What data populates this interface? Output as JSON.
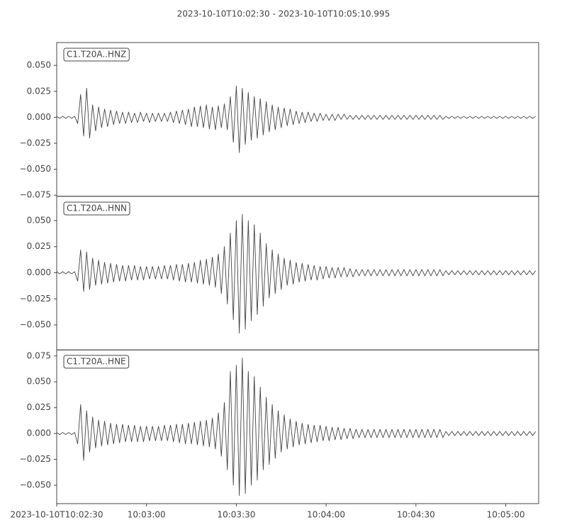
{
  "chart_data": [
    {
      "type": "line",
      "title": "2023-10-10T10:02:30  -  2023-10-10T10:05:10.995",
      "xlim": [
        0,
        160.995
      ],
      "ylim": [
        -0.076,
        0.072
      ],
      "yticks": [
        {
          "value": -0.075,
          "label": "−0.075"
        },
        {
          "value": -0.05,
          "label": "−0.050"
        },
        {
          "value": -0.025,
          "label": "−0.025"
        },
        {
          "value": 0,
          "label": "0.000"
        },
        {
          "value": 0.025,
          "label": "0.025"
        },
        {
          "value": 0.05,
          "label": "0.050"
        }
      ],
      "x": [
        0,
        1,
        2,
        3,
        4,
        5,
        6,
        7,
        8,
        9,
        10,
        11,
        12,
        13,
        14,
        15,
        16,
        17,
        18,
        19,
        20,
        21,
        22,
        23,
        24,
        25,
        26,
        27,
        28,
        29,
        30,
        31,
        32,
        33,
        34,
        35,
        36,
        37,
        38,
        39,
        40,
        41,
        42,
        43,
        44,
        45,
        46,
        47,
        48,
        49,
        50,
        51,
        52,
        53,
        54,
        55,
        56,
        57,
        58,
        59,
        60,
        61,
        62,
        63,
        64,
        65,
        66,
        67,
        68,
        69,
        70,
        71,
        72,
        73,
        74,
        75,
        76,
        77,
        78,
        79,
        80,
        81,
        82,
        83,
        84,
        85,
        86,
        87,
        88,
        89,
        90,
        91,
        92,
        93,
        94,
        95,
        96,
        97,
        98,
        99,
        100,
        101,
        102,
        103,
        104,
        105,
        106,
        107,
        108,
        109,
        110,
        111,
        112,
        113,
        114,
        115,
        116,
        117,
        118,
        119,
        120,
        121,
        122,
        123,
        124,
        125,
        126,
        127,
        128,
        129,
        130,
        131,
        132,
        133,
        134,
        135,
        136,
        137,
        138,
        139,
        140,
        141,
        142,
        143,
        144,
        145,
        146,
        147,
        148,
        149,
        150,
        151,
        152,
        153,
        154,
        155,
        156,
        157,
        158,
        159,
        160
      ],
      "series": [
        {
          "name": "C1.T20A..HNZ",
          "color": "#444444",
          "values": [
            0.001,
            -0.001,
            0.001,
            -0.001,
            0.001,
            -0.001,
            0.001,
            -0.006,
            0.022,
            -0.018,
            0.028,
            -0.02,
            0.012,
            -0.013,
            0.01,
            -0.01,
            0.008,
            -0.009,
            0.007,
            -0.007,
            0.006,
            -0.006,
            0.005,
            -0.006,
            0.005,
            -0.005,
            0.004,
            -0.005,
            0.005,
            -0.004,
            0.004,
            -0.005,
            0.004,
            -0.004,
            0.004,
            -0.004,
            0.004,
            -0.004,
            0.005,
            -0.005,
            0.006,
            -0.006,
            0.007,
            -0.007,
            0.008,
            -0.009,
            0.01,
            -0.009,
            0.011,
            -0.01,
            0.012,
            -0.011,
            0.01,
            -0.012,
            0.011,
            -0.01,
            0.013,
            -0.012,
            0.02,
            -0.024,
            0.03,
            -0.034,
            0.028,
            -0.026,
            0.024,
            -0.022,
            0.02,
            -0.02,
            0.018,
            -0.017,
            0.015,
            -0.014,
            0.012,
            -0.012,
            0.01,
            -0.01,
            0.009,
            -0.008,
            0.008,
            -0.007,
            0.006,
            -0.006,
            0.005,
            -0.005,
            0.005,
            -0.004,
            0.004,
            -0.004,
            0.004,
            -0.003,
            0.003,
            -0.003,
            0.003,
            -0.003,
            0.003,
            -0.002,
            0.003,
            -0.002,
            0.002,
            -0.002,
            0.002,
            -0.002,
            0.002,
            -0.002,
            0.002,
            -0.002,
            0.002,
            -0.002,
            0.002,
            -0.002,
            0.002,
            -0.002,
            0.002,
            -0.002,
            0.002,
            -0.002,
            0.002,
            -0.002,
            0.002,
            -0.002,
            0.002,
            -0.002,
            0.002,
            -0.002,
            0.002,
            -0.002,
            0.002,
            -0.002,
            0.002,
            -0.002,
            0.001,
            -0.001,
            0.001,
            -0.001,
            0.001,
            -0.001,
            0.001,
            -0.001,
            0.001,
            -0.001,
            0.001,
            -0.001,
            0.001,
            -0.001,
            0.001,
            -0.001,
            0.001,
            -0.001,
            0.001,
            -0.001,
            0.001,
            -0.001,
            0.001,
            -0.001,
            0.001,
            -0.001,
            0.001,
            -0.001,
            0.001,
            -0.001,
            0.001
          ]
        }
      ]
    },
    {
      "type": "line",
      "xlim": [
        0,
        160.995
      ],
      "ylim": [
        -0.074,
        0.0733
      ],
      "yticks": [
        {
          "value": -0.05,
          "label": "−0.050"
        },
        {
          "value": -0.025,
          "label": "−0.025"
        },
        {
          "value": 0,
          "label": "0.000"
        },
        {
          "value": 0.025,
          "label": "0.025"
        },
        {
          "value": 0.05,
          "label": "0.050"
        }
      ],
      "x": [
        0,
        1,
        2,
        3,
        4,
        5,
        6,
        7,
        8,
        9,
        10,
        11,
        12,
        13,
        14,
        15,
        16,
        17,
        18,
        19,
        20,
        21,
        22,
        23,
        24,
        25,
        26,
        27,
        28,
        29,
        30,
        31,
        32,
        33,
        34,
        35,
        36,
        37,
        38,
        39,
        40,
        41,
        42,
        43,
        44,
        45,
        46,
        47,
        48,
        49,
        50,
        51,
        52,
        53,
        54,
        55,
        56,
        57,
        58,
        59,
        60,
        61,
        62,
        63,
        64,
        65,
        66,
        67,
        68,
        69,
        70,
        71,
        72,
        73,
        74,
        75,
        76,
        77,
        78,
        79,
        80,
        81,
        82,
        83,
        84,
        85,
        86,
        87,
        88,
        89,
        90,
        91,
        92,
        93,
        94,
        95,
        96,
        97,
        98,
        99,
        100,
        101,
        102,
        103,
        104,
        105,
        106,
        107,
        108,
        109,
        110,
        111,
        112,
        113,
        114,
        115,
        116,
        117,
        118,
        119,
        120,
        121,
        122,
        123,
        124,
        125,
        126,
        127,
        128,
        129,
        130,
        131,
        132,
        133,
        134,
        135,
        136,
        137,
        138,
        139,
        140,
        141,
        142,
        143,
        144,
        145,
        146,
        147,
        148,
        149,
        150,
        151,
        152,
        153,
        154,
        155,
        156,
        157,
        158,
        159,
        160
      ],
      "series": [
        {
          "name": "C1.T20A..HNN",
          "color": "#444444",
          "values": [
            0.001,
            -0.001,
            0.001,
            -0.001,
            0.001,
            -0.001,
            0.001,
            -0.008,
            0.022,
            -0.018,
            0.02,
            -0.016,
            0.014,
            -0.012,
            0.012,
            -0.011,
            0.01,
            -0.01,
            0.009,
            -0.009,
            0.008,
            -0.008,
            0.007,
            -0.008,
            0.007,
            -0.007,
            0.007,
            -0.007,
            0.006,
            -0.007,
            0.006,
            -0.006,
            0.006,
            -0.006,
            0.006,
            -0.006,
            0.007,
            -0.006,
            0.007,
            -0.007,
            0.008,
            -0.008,
            0.008,
            -0.009,
            0.009,
            -0.009,
            0.01,
            -0.01,
            0.012,
            -0.011,
            0.013,
            -0.012,
            0.015,
            -0.014,
            0.018,
            -0.02,
            0.025,
            -0.03,
            0.038,
            -0.045,
            0.05,
            -0.058,
            0.056,
            -0.054,
            0.05,
            -0.046,
            0.046,
            -0.04,
            0.038,
            -0.032,
            0.028,
            -0.024,
            0.022,
            -0.02,
            0.018,
            -0.016,
            0.014,
            -0.012,
            0.012,
            -0.011,
            0.01,
            -0.009,
            0.009,
            -0.008,
            0.008,
            -0.007,
            0.007,
            -0.007,
            0.006,
            -0.006,
            0.006,
            -0.005,
            0.005,
            -0.005,
            0.005,
            -0.004,
            0.005,
            -0.004,
            0.004,
            -0.004,
            0.003,
            -0.003,
            0.003,
            -0.003,
            0.003,
            -0.003,
            0.003,
            -0.003,
            0.003,
            -0.003,
            0.003,
            -0.003,
            0.003,
            -0.003,
            0.003,
            -0.003,
            0.003,
            -0.003,
            0.003,
            -0.003,
            0.003,
            -0.003,
            0.003,
            -0.003,
            0.003,
            -0.003,
            0.003,
            -0.003,
            0.003,
            -0.003,
            0.002,
            -0.002,
            0.002,
            -0.002,
            0.002,
            -0.002,
            0.002,
            -0.002,
            0.002,
            -0.002,
            0.002,
            -0.002,
            0.002,
            -0.002,
            0.002,
            -0.002,
            0.002,
            -0.002,
            0.002,
            -0.002,
            0.002,
            -0.002,
            0.002,
            -0.002,
            0.002,
            -0.002,
            0.002,
            -0.002,
            0.002,
            -0.002,
            0.002
          ]
        }
      ]
    },
    {
      "type": "line",
      "xlim": [
        0,
        160.995
      ],
      "ylim": [
        -0.0678,
        0.0808
      ],
      "xticks": [
        {
          "value": 0,
          "label": "2023-10-10T10:02:30"
        },
        {
          "value": 30,
          "label": "10:03:00"
        },
        {
          "value": 60,
          "label": "10:03:30"
        },
        {
          "value": 90,
          "label": "10:04:00"
        },
        {
          "value": 120,
          "label": "10:04:30"
        },
        {
          "value": 150,
          "label": "10:05:00"
        }
      ],
      "yticks": [
        {
          "value": -0.05,
          "label": "−0.050"
        },
        {
          "value": -0.025,
          "label": "−0.025"
        },
        {
          "value": 0,
          "label": "0.000"
        },
        {
          "value": 0.025,
          "label": "0.025"
        },
        {
          "value": 0.05,
          "label": "0.050"
        },
        {
          "value": 0.075,
          "label": "0.075"
        }
      ],
      "x": [
        0,
        1,
        2,
        3,
        4,
        5,
        6,
        7,
        8,
        9,
        10,
        11,
        12,
        13,
        14,
        15,
        16,
        17,
        18,
        19,
        20,
        21,
        22,
        23,
        24,
        25,
        26,
        27,
        28,
        29,
        30,
        31,
        32,
        33,
        34,
        35,
        36,
        37,
        38,
        39,
        40,
        41,
        42,
        43,
        44,
        45,
        46,
        47,
        48,
        49,
        50,
        51,
        52,
        53,
        54,
        55,
        56,
        57,
        58,
        59,
        60,
        61,
        62,
        63,
        64,
        65,
        66,
        67,
        68,
        69,
        70,
        71,
        72,
        73,
        74,
        75,
        76,
        77,
        78,
        79,
        80,
        81,
        82,
        83,
        84,
        85,
        86,
        87,
        88,
        89,
        90,
        91,
        92,
        93,
        94,
        95,
        96,
        97,
        98,
        99,
        100,
        101,
        102,
        103,
        104,
        105,
        106,
        107,
        108,
        109,
        110,
        111,
        112,
        113,
        114,
        115,
        116,
        117,
        118,
        119,
        120,
        121,
        122,
        123,
        124,
        125,
        126,
        127,
        128,
        129,
        130,
        131,
        132,
        133,
        134,
        135,
        136,
        137,
        138,
        139,
        140,
        141,
        142,
        143,
        144,
        145,
        146,
        147,
        148,
        149,
        150,
        151,
        152,
        153,
        154,
        155,
        156,
        157,
        158,
        159,
        160
      ],
      "series": [
        {
          "name": "C1.T20A..HNE",
          "color": "#444444",
          "values": [
            0.001,
            -0.001,
            0.001,
            -0.001,
            0.001,
            -0.001,
            0.001,
            -0.01,
            0.028,
            -0.026,
            0.022,
            -0.018,
            0.016,
            -0.014,
            0.013,
            -0.012,
            0.012,
            -0.011,
            0.01,
            -0.01,
            0.009,
            -0.009,
            0.009,
            -0.008,
            0.008,
            -0.008,
            0.008,
            -0.008,
            0.007,
            -0.008,
            0.007,
            -0.007,
            0.007,
            -0.007,
            0.007,
            -0.007,
            0.008,
            -0.007,
            0.008,
            -0.008,
            0.009,
            -0.009,
            0.009,
            -0.01,
            0.01,
            -0.01,
            0.011,
            -0.011,
            0.012,
            -0.012,
            0.013,
            -0.013,
            0.015,
            -0.015,
            0.02,
            -0.022,
            0.03,
            -0.035,
            0.06,
            -0.05,
            0.066,
            -0.06,
            0.073,
            -0.058,
            0.06,
            -0.05,
            0.055,
            -0.045,
            0.045,
            -0.035,
            0.035,
            -0.03,
            0.028,
            -0.024,
            0.022,
            -0.018,
            0.018,
            -0.015,
            0.014,
            -0.013,
            0.012,
            -0.011,
            0.01,
            -0.01,
            0.009,
            -0.009,
            0.008,
            -0.008,
            0.008,
            -0.007,
            0.007,
            -0.007,
            0.006,
            -0.006,
            0.006,
            -0.006,
            0.005,
            -0.005,
            0.005,
            -0.005,
            0.004,
            -0.004,
            0.004,
            -0.004,
            0.004,
            -0.004,
            0.004,
            -0.004,
            0.004,
            -0.004,
            0.004,
            -0.004,
            0.004,
            -0.004,
            0.004,
            -0.004,
            0.004,
            -0.004,
            0.004,
            -0.004,
            0.004,
            -0.004,
            0.004,
            -0.004,
            0.004,
            -0.004,
            0.004,
            -0.004,
            0.004,
            -0.004,
            0.002,
            -0.002,
            0.002,
            -0.002,
            0.002,
            -0.002,
            0.002,
            -0.002,
            0.002,
            -0.002,
            0.002,
            -0.002,
            0.002,
            -0.002,
            0.002,
            -0.002,
            0.002,
            -0.002,
            0.002,
            -0.002,
            0.002,
            -0.002,
            0.002,
            -0.002,
            0.002,
            -0.002,
            0.002,
            -0.002,
            0.002,
            -0.002,
            0.002
          ]
        }
      ]
    }
  ]
}
